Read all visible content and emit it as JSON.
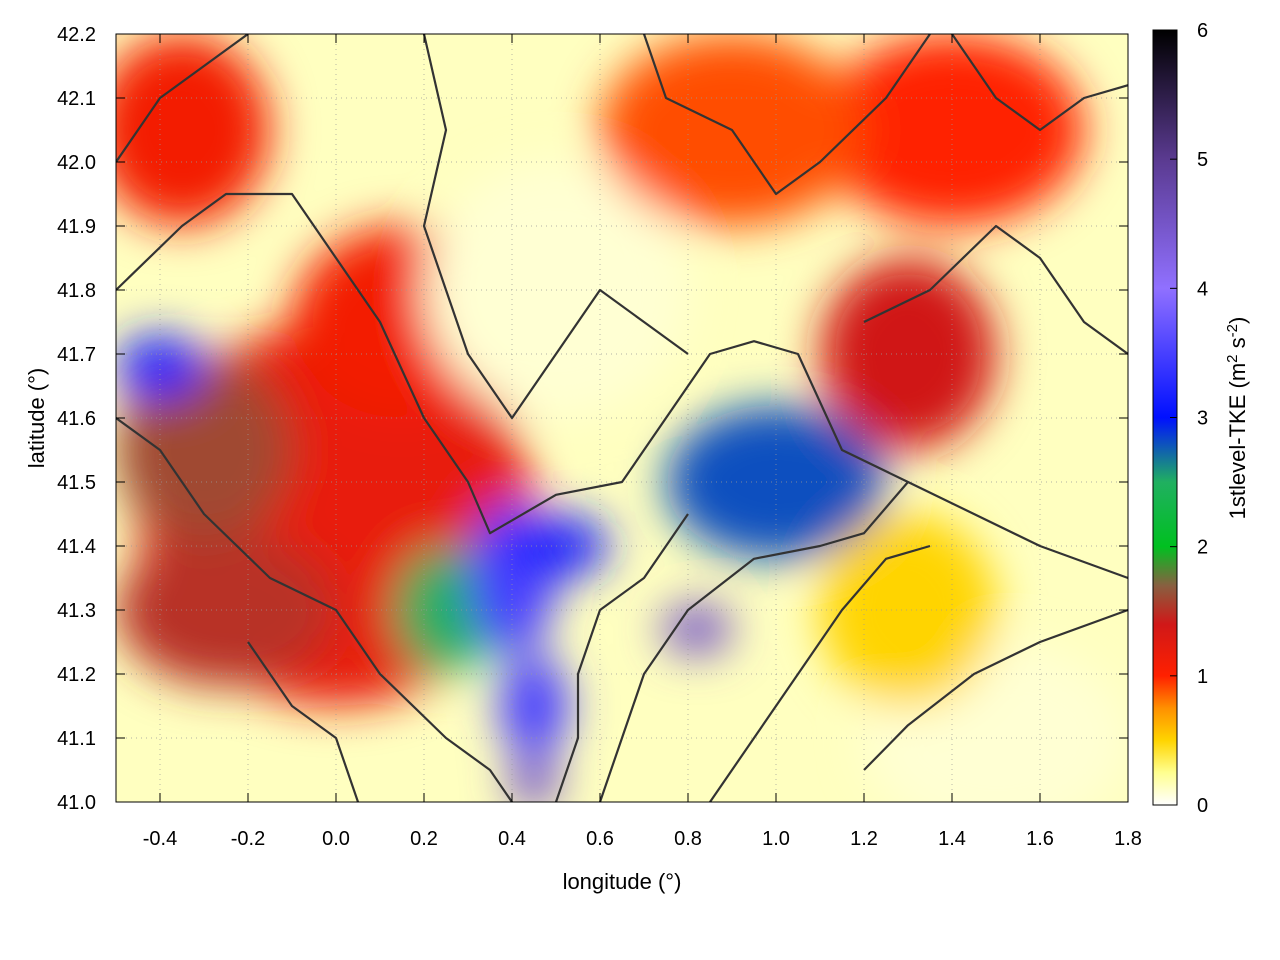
{
  "chart_data": {
    "type": "heatmap",
    "title": "",
    "xlabel": "longitude (°)",
    "ylabel": "latitude (°)",
    "colorbar_label": "1stlevel-TKE (m2 s-2)",
    "xlim": [
      -0.5,
      1.8
    ],
    "ylim": [
      41.0,
      42.2
    ],
    "x_ticks": [
      -0.4,
      -0.2,
      0.0,
      0.2,
      0.4,
      0.6,
      0.8,
      1.0,
      1.2,
      1.4,
      1.6,
      1.8
    ],
    "x_tick_labels": [
      "-0.4",
      "-0.2",
      "0.0",
      "0.2",
      "0.4",
      "0.6",
      "0.8",
      "1.0",
      "1.2",
      "1.4",
      "1.6",
      "1.8"
    ],
    "y_ticks": [
      41.0,
      41.1,
      41.2,
      41.3,
      41.4,
      41.5,
      41.6,
      41.7,
      41.8,
      41.9,
      42.0,
      42.1,
      42.2
    ],
    "y_tick_labels": [
      "41.0",
      "41.1",
      "41.2",
      "41.3",
      "41.4",
      "41.5",
      "41.6",
      "41.7",
      "41.8",
      "41.9",
      "42.0",
      "42.1",
      "42.2"
    ],
    "colorbar": {
      "range": [
        0,
        6
      ],
      "ticks": [
        0,
        1,
        2,
        3,
        4,
        5,
        6
      ],
      "tick_labels": [
        "0",
        "1",
        "2",
        "3",
        "4",
        "5",
        "6"
      ],
      "palette": [
        {
          "value": 0.0,
          "color": "#ffffff"
        },
        {
          "value": 0.25,
          "color": "#ffff90"
        },
        {
          "value": 0.5,
          "color": "#ffd400"
        },
        {
          "value": 0.75,
          "color": "#ff9000"
        },
        {
          "value": 1.0,
          "color": "#ff2000"
        },
        {
          "value": 1.4,
          "color": "#d01818"
        },
        {
          "value": 1.7,
          "color": "#886040"
        },
        {
          "value": 2.0,
          "color": "#00c020"
        },
        {
          "value": 2.5,
          "color": "#20b060"
        },
        {
          "value": 3.0,
          "color": "#0010ff"
        },
        {
          "value": 4.0,
          "color": "#9070ff"
        },
        {
          "value": 5.0,
          "color": "#5a3a90"
        },
        {
          "value": 6.0,
          "color": "#000000"
        }
      ]
    },
    "grid": true,
    "field_regions": [
      {
        "lon": 0.0,
        "lat": 41.45,
        "tke": 1.2,
        "rlon": 0.45,
        "rlat": 0.3
      },
      {
        "lon": -0.3,
        "lat": 41.55,
        "tke": 1.6,
        "rlon": 0.2,
        "rlat": 0.15
      },
      {
        "lon": -0.4,
        "lat": 41.68,
        "tke": 3.2,
        "rlon": 0.1,
        "rlat": 0.05
      },
      {
        "lon": -0.25,
        "lat": 41.3,
        "tke": 1.5,
        "rlon": 0.25,
        "rlat": 0.12
      },
      {
        "lon": 0.25,
        "lat": 41.3,
        "tke": 2.5,
        "rlon": 0.12,
        "rlat": 0.1
      },
      {
        "lon": 0.4,
        "lat": 41.35,
        "tke": 3.5,
        "rlon": 0.1,
        "rlat": 0.12
      },
      {
        "lon": 0.5,
        "lat": 41.4,
        "tke": 3.2,
        "rlon": 0.12,
        "rlat": 0.05
      },
      {
        "lon": 0.45,
        "lat": 41.15,
        "tke": 3.5,
        "rlon": 0.08,
        "rlat": 0.08
      },
      {
        "lon": 0.45,
        "lat": 41.03,
        "tke": 4.5,
        "rlon": 0.06,
        "rlat": 0.04
      },
      {
        "lon": 0.82,
        "lat": 41.27,
        "tke": 4.5,
        "rlon": 0.08,
        "rlat": 0.04
      },
      {
        "lon": 1.0,
        "lat": 41.5,
        "tke": 2.8,
        "rlon": 0.25,
        "rlat": 0.12
      },
      {
        "lon": 1.3,
        "lat": 41.7,
        "tke": 1.4,
        "rlon": 0.2,
        "rlat": 0.15
      },
      {
        "lon": 0.15,
        "lat": 41.75,
        "tke": 1.1,
        "rlon": 0.25,
        "rlat": 0.15
      },
      {
        "lon": -0.35,
        "lat": 42.05,
        "tke": 1.1,
        "rlon": 0.2,
        "rlat": 0.15
      },
      {
        "lon": 0.5,
        "lat": 41.8,
        "tke": 0.1,
        "rlon": 0.3,
        "rlat": 0.2
      },
      {
        "lon": 1.5,
        "lat": 41.1,
        "tke": 0.1,
        "rlon": 0.3,
        "rlat": 0.15
      },
      {
        "lon": 1.4,
        "lat": 42.05,
        "tke": 1.0,
        "rlon": 0.3,
        "rlat": 0.15
      },
      {
        "lon": 0.9,
        "lat": 42.05,
        "tke": 0.9,
        "rlon": 0.3,
        "rlat": 0.15
      },
      {
        "lon": 1.3,
        "lat": 41.3,
        "tke": 0.5,
        "rlon": 0.2,
        "rlat": 0.15
      }
    ],
    "contours": [
      [
        [
          -0.5,
          41.8
        ],
        [
          -0.35,
          41.9
        ],
        [
          -0.25,
          41.95
        ],
        [
          -0.1,
          41.95
        ],
        [
          0.0,
          41.85
        ],
        [
          0.1,
          41.75
        ],
        [
          0.2,
          41.6
        ],
        [
          0.3,
          41.5
        ],
        [
          0.35,
          41.42
        ],
        [
          0.5,
          41.48
        ],
        [
          0.65,
          41.5
        ],
        [
          0.75,
          41.6
        ],
        [
          0.85,
          41.7
        ],
        [
          0.95,
          41.72
        ],
        [
          1.05,
          41.7
        ],
        [
          1.15,
          41.55
        ],
        [
          1.3,
          41.5
        ],
        [
          1.45,
          41.45
        ],
        [
          1.6,
          41.4
        ],
        [
          1.8,
          41.35
        ]
      ],
      [
        [
          -0.5,
          41.6
        ],
        [
          -0.4,
          41.55
        ],
        [
          -0.3,
          41.45
        ],
        [
          -0.15,
          41.35
        ],
        [
          0.0,
          41.3
        ],
        [
          0.1,
          41.2
        ],
        [
          0.25,
          41.1
        ],
        [
          0.35,
          41.05
        ],
        [
          0.4,
          41.0
        ]
      ],
      [
        [
          0.2,
          42.2
        ],
        [
          0.25,
          42.05
        ],
        [
          0.2,
          41.9
        ],
        [
          0.25,
          41.8
        ],
        [
          0.3,
          41.7
        ],
        [
          0.4,
          41.6
        ],
        [
          0.5,
          41.7
        ],
        [
          0.6,
          41.8
        ],
        [
          0.7,
          41.75
        ],
        [
          0.8,
          41.7
        ]
      ],
      [
        [
          0.6,
          41.0
        ],
        [
          0.65,
          41.1
        ],
        [
          0.7,
          41.2
        ],
        [
          0.8,
          41.3
        ],
        [
          0.95,
          41.38
        ],
        [
          1.1,
          41.4
        ],
        [
          1.2,
          41.42
        ],
        [
          1.3,
          41.5
        ]
      ],
      [
        [
          0.85,
          41.0
        ],
        [
          0.95,
          41.1
        ],
        [
          1.05,
          41.2
        ],
        [
          1.15,
          41.3
        ],
        [
          1.25,
          41.38
        ],
        [
          1.35,
          41.4
        ]
      ],
      [
        [
          1.2,
          41.05
        ],
        [
          1.3,
          41.12
        ],
        [
          1.45,
          41.2
        ],
        [
          1.6,
          41.25
        ],
        [
          1.8,
          41.3
        ]
      ],
      [
        [
          -0.5,
          42.0
        ],
        [
          -0.4,
          42.1
        ],
        [
          -0.3,
          42.15
        ],
        [
          -0.2,
          42.2
        ]
      ],
      [
        [
          0.7,
          42.2
        ],
        [
          0.75,
          42.1
        ],
        [
          0.9,
          42.05
        ],
        [
          1.0,
          41.95
        ],
        [
          1.1,
          42.0
        ],
        [
          1.25,
          42.1
        ],
        [
          1.35,
          42.2
        ]
      ],
      [
        [
          1.4,
          42.2
        ],
        [
          1.5,
          42.1
        ],
        [
          1.6,
          42.05
        ],
        [
          1.7,
          42.1
        ],
        [
          1.8,
          42.12
        ]
      ],
      [
        [
          -0.2,
          41.25
        ],
        [
          -0.1,
          41.15
        ],
        [
          0.0,
          41.1
        ],
        [
          0.05,
          41.0
        ]
      ],
      [
        [
          0.5,
          41.0
        ],
        [
          0.55,
          41.1
        ],
        [
          0.55,
          41.2
        ],
        [
          0.6,
          41.3
        ],
        [
          0.7,
          41.35
        ],
        [
          0.8,
          41.45
        ]
      ],
      [
        [
          1.2,
          41.75
        ],
        [
          1.35,
          41.8
        ],
        [
          1.5,
          41.9
        ],
        [
          1.6,
          41.85
        ],
        [
          1.7,
          41.75
        ],
        [
          1.8,
          41.7
        ]
      ]
    ]
  }
}
